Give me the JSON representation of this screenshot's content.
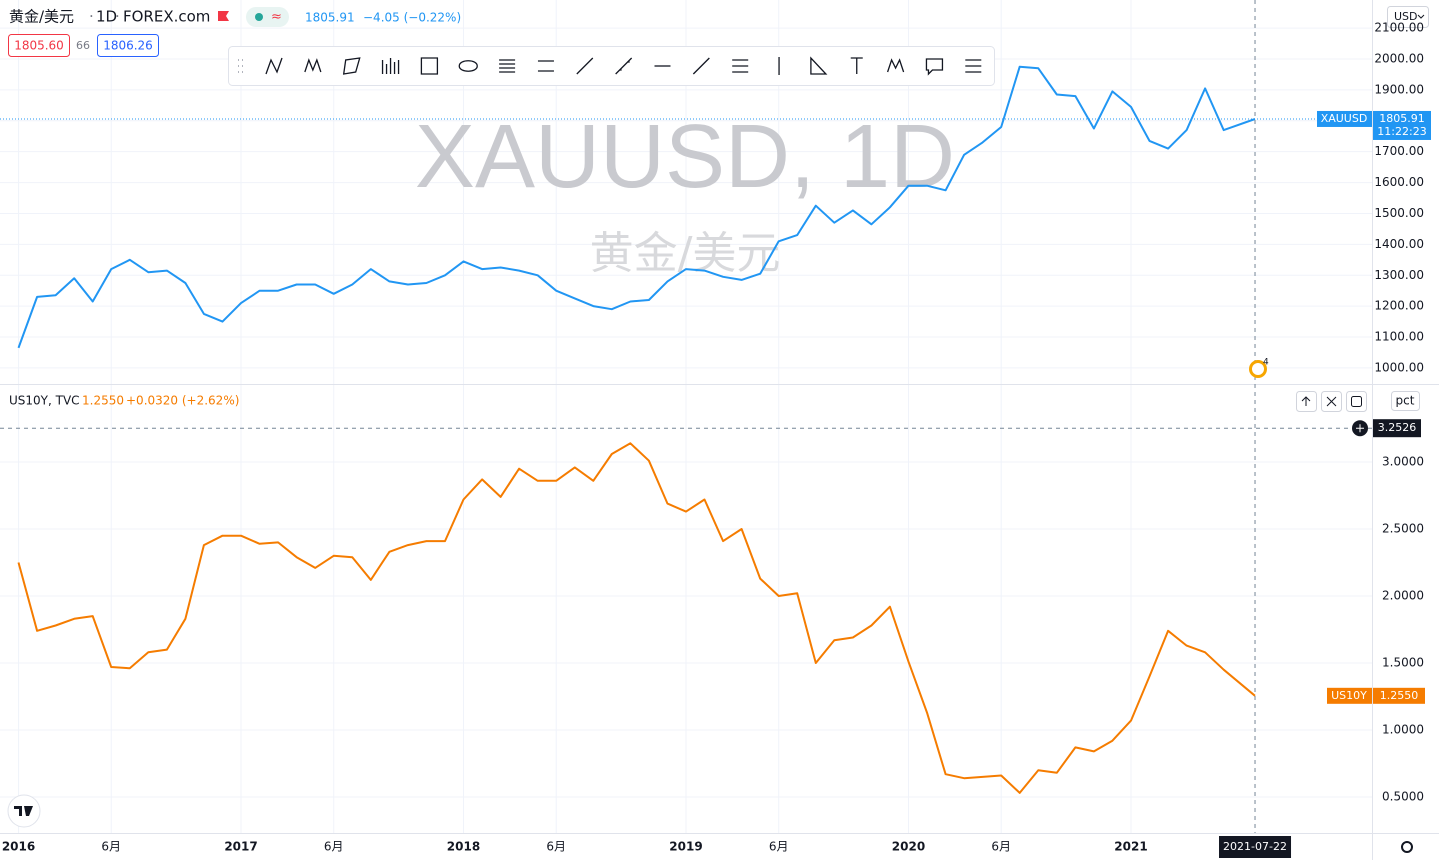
{
  "ui": {
    "symbol": "黄金/美元",
    "interval": "1D",
    "exchange": "FOREX.com",
    "last": "1805.91",
    "change": "−4.05 (−0.22%)",
    "bid": "1805.60",
    "spread": "66",
    "ask": "1806.26",
    "watermark_title": "XAUUSD, 1D",
    "watermark_subtitle": "黄金/美元",
    "currency": "USD",
    "price_label_name": "XAUUSD",
    "price_label_value": "1805.91",
    "countdown": "11:22:23",
    "pane2_symbol": "US10Y, TVC",
    "pane2_last": "1.2550",
    "pane2_change": "+0.0320 (+2.62%)",
    "pane2_scale": "pct",
    "pane2_label_name": "US10Y",
    "pane2_label_value": "1.2550",
    "event_badge": "4"
  },
  "chart_data": [
    {
      "type": "line",
      "x": [
        "2016-01",
        "2016-02",
        "2016-03",
        "2016-04",
        "2016-05",
        "2016-06",
        "2016-07",
        "2016-08",
        "2016-09",
        "2016-10",
        "2016-11",
        "2016-12",
        "2017-01",
        "2017-02",
        "2017-03",
        "2017-04",
        "2017-05",
        "2017-06",
        "2017-07",
        "2017-08",
        "2017-09",
        "2017-10",
        "2017-11",
        "2017-12",
        "2018-01",
        "2018-02",
        "2018-03",
        "2018-04",
        "2018-05",
        "2018-06",
        "2018-07",
        "2018-08",
        "2018-09",
        "2018-10",
        "2018-11",
        "2018-12",
        "2019-01",
        "2019-02",
        "2019-03",
        "2019-04",
        "2019-05",
        "2019-06",
        "2019-07",
        "2019-08",
        "2019-09",
        "2019-10",
        "2019-11",
        "2019-12",
        "2020-01",
        "2020-02",
        "2020-03",
        "2020-04",
        "2020-05",
        "2020-06",
        "2020-07",
        "2020-08",
        "2020-09",
        "2020-10",
        "2020-11",
        "2020-12",
        "2021-01",
        "2021-02",
        "2021-03",
        "2021-04",
        "2021-05",
        "2021-06",
        "2021-07-22"
      ],
      "series": [
        {
          "name": "XAUUSD",
          "color": "#2196f3",
          "values": [
            1065,
            1230,
            1235,
            1290,
            1215,
            1320,
            1350,
            1310,
            1315,
            1275,
            1175,
            1150,
            1210,
            1250,
            1250,
            1270,
            1270,
            1240,
            1270,
            1320,
            1280,
            1270,
            1275,
            1300,
            1345,
            1320,
            1325,
            1315,
            1300,
            1250,
            1225,
            1200,
            1190,
            1215,
            1220,
            1280,
            1320,
            1315,
            1295,
            1285,
            1305,
            1410,
            1430,
            1525,
            1470,
            1510,
            1465,
            1520,
            1590,
            1590,
            1575,
            1690,
            1730,
            1780,
            1975,
            1970,
            1885,
            1880,
            1775,
            1895,
            1845,
            1735,
            1710,
            1770,
            1905,
            1770,
            1805.91
          ]
        }
      ],
      "xlim": [
        "2015-12-01",
        "2022-02-01"
      ],
      "ylim": [
        948,
        2191
      ],
      "yticks": [
        {
          "value": 1000,
          "label": "1000.00"
        },
        {
          "value": 1100,
          "label": "1100.00"
        },
        {
          "value": 1200,
          "label": "1200.00"
        },
        {
          "value": 1300,
          "label": "1300.00"
        },
        {
          "value": 1400,
          "label": "1400.00"
        },
        {
          "value": 1500,
          "label": "1500.00"
        },
        {
          "value": 1600,
          "label": "1600.00"
        },
        {
          "value": 1700,
          "label": "1700.00"
        },
        {
          "value": 1800,
          "label": "1800.00"
        },
        {
          "value": 1900,
          "label": "1900.00"
        },
        {
          "value": 2000,
          "label": "2000.00"
        },
        {
          "value": 2100,
          "label": "2100.00"
        }
      ],
      "grid": true
    },
    {
      "type": "line",
      "x": [
        "2016-01",
        "2016-02",
        "2016-03",
        "2016-04",
        "2016-05",
        "2016-06",
        "2016-07",
        "2016-08",
        "2016-09",
        "2016-10",
        "2016-11",
        "2016-12",
        "2017-01",
        "2017-02",
        "2017-03",
        "2017-04",
        "2017-05",
        "2017-06",
        "2017-07",
        "2017-08",
        "2017-09",
        "2017-10",
        "2017-11",
        "2017-12",
        "2018-01",
        "2018-02",
        "2018-03",
        "2018-04",
        "2018-05",
        "2018-06",
        "2018-07",
        "2018-08",
        "2018-09",
        "2018-10",
        "2018-11",
        "2018-12",
        "2019-01",
        "2019-02",
        "2019-03",
        "2019-04",
        "2019-05",
        "2019-06",
        "2019-07",
        "2019-08",
        "2019-09",
        "2019-10",
        "2019-11",
        "2019-12",
        "2020-01",
        "2020-02",
        "2020-03",
        "2020-04",
        "2020-05",
        "2020-06",
        "2020-07",
        "2020-08",
        "2020-09",
        "2020-10",
        "2020-11",
        "2020-12",
        "2021-01",
        "2021-02",
        "2021-03",
        "2021-04",
        "2021-05",
        "2021-06",
        "2021-07-22"
      ],
      "series": [
        {
          "name": "US10Y",
          "color": "#f57c00",
          "values": [
            2.25,
            1.74,
            1.78,
            1.83,
            1.85,
            1.47,
            1.46,
            1.58,
            1.6,
            1.83,
            2.38,
            2.45,
            2.45,
            2.39,
            2.4,
            2.29,
            2.21,
            2.3,
            2.29,
            2.12,
            2.33,
            2.38,
            2.41,
            2.41,
            2.72,
            2.87,
            2.74,
            2.95,
            2.86,
            2.86,
            2.96,
            2.86,
            3.06,
            3.14,
            3.01,
            2.69,
            2.63,
            2.72,
            2.41,
            2.5,
            2.13,
            2.0,
            2.02,
            1.5,
            1.67,
            1.69,
            1.78,
            1.92,
            1.51,
            1.13,
            0.67,
            0.64,
            0.65,
            0.66,
            0.53,
            0.7,
            0.68,
            0.87,
            0.84,
            0.92,
            1.07,
            1.4,
            1.74,
            1.63,
            1.58,
            1.45,
            1.255
          ]
        }
      ],
      "xlim": [
        "2015-12-01",
        "2022-02-01"
      ],
      "ylim": [
        0.231,
        3.575
      ],
      "yticks": [
        {
          "value": 0.5,
          "label": "0.5000"
        },
        {
          "value": 1,
          "label": "1.0000"
        },
        {
          "value": 1.5,
          "label": "1.5000"
        },
        {
          "value": 2,
          "label": "2.0000"
        },
        {
          "value": 2.5,
          "label": "2.5000"
        },
        {
          "value": 3,
          "label": "3.0000"
        }
      ],
      "xticks": [
        {
          "value": "2016-01",
          "label": "2016"
        },
        {
          "value": "2016-06",
          "label": "6月"
        },
        {
          "value": "2017-01",
          "label": "2017"
        },
        {
          "value": "2017-06",
          "label": "6月"
        },
        {
          "value": "2018-01",
          "label": "2018"
        },
        {
          "value": "2018-06",
          "label": "6月"
        },
        {
          "value": "2019-01",
          "label": "2019"
        },
        {
          "value": "2019-06",
          "label": "6月"
        },
        {
          "value": "2020-01",
          "label": "2020"
        },
        {
          "value": "2020-06",
          "label": "6月"
        },
        {
          "value": "2021-01",
          "label": "2021"
        }
      ],
      "crosshair": {
        "x": "2021-07-22",
        "y": 3.2526
      },
      "grid": true
    }
  ]
}
